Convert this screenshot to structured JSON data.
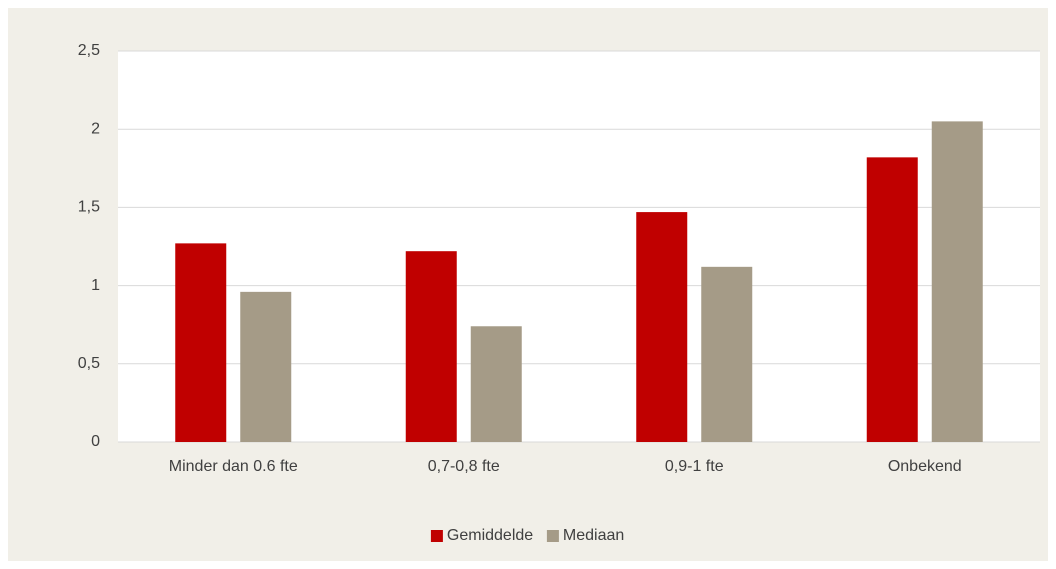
{
  "chart_data": {
    "type": "bar",
    "categories": [
      "Minder dan 0.6 fte",
      "0,7-0,8 fte",
      "0,9-1 fte",
      "Onbekend"
    ],
    "series": [
      {
        "name": "Gemiddelde",
        "color": "#c00000",
        "values": [
          1.27,
          1.22,
          1.47,
          1.82
        ]
      },
      {
        "name": "Mediaan",
        "color": "#a59b87",
        "values": [
          0.96,
          0.74,
          1.12,
          2.05
        ]
      }
    ],
    "ylim": [
      0,
      2.5
    ],
    "yticks": [
      0,
      {
        "value": 0.5,
        "label": "0,5"
      },
      1,
      {
        "value": 1.5,
        "label": "1,5"
      },
      2,
      {
        "value": 2.5,
        "label": "2,5"
      }
    ],
    "grid": true,
    "legend": "bottom"
  }
}
